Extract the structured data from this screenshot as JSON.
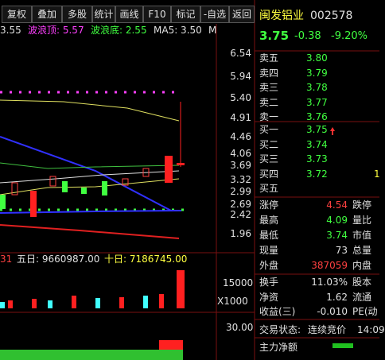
{
  "toolbar": [
    "复权",
    "叠加",
    "多股",
    "统计",
    "画线",
    "F10",
    "标记",
    "-自选",
    "返回"
  ],
  "indicator": [
    {
      "text": "3.55",
      "color": "#e0e0e0"
    },
    {
      "text": "波浪顶: 5.57",
      "color": "#ff40ff"
    },
    {
      "text": "波浪底: 2.55",
      "color": "#40ff40"
    },
    {
      "text": "MA5: 3.50",
      "color": "#e0e0e0"
    },
    {
      "text": "M",
      "color": "#e0e0e0"
    }
  ],
  "price_axis": [
    "6.54",
    "5.94",
    "5.40",
    "4.91",
    "4.46",
    "4.06",
    "3.69",
    "3.32",
    "2.99",
    "2.69",
    "2.42",
    "1.96"
  ],
  "volume_line": [
    {
      "text": "31",
      "color": "#ff4040"
    },
    {
      "text": "五日: 9660987.00",
      "color": "#e0e0e0"
    },
    {
      "text": "十日: 7186745.00",
      "color": "#ffff40"
    }
  ],
  "volume_axis": [
    "15000",
    "X1000"
  ],
  "lower_axis": [
    "30.00"
  ],
  "quote": {
    "name": "闽发铝业",
    "code": "002578",
    "price": "3.75",
    "change": "-0.38",
    "pct": "-9.20%"
  },
  "sell": [
    {
      "label": "卖五",
      "price": "3.80"
    },
    {
      "label": "卖四",
      "price": "3.79"
    },
    {
      "label": "卖三",
      "price": "3.78"
    },
    {
      "label": "卖二",
      "price": "3.77"
    },
    {
      "label": "卖一",
      "price": "3.76"
    }
  ],
  "buy": [
    {
      "label": "买一",
      "price": "3.75"
    },
    {
      "label": "买二",
      "price": "3.74"
    },
    {
      "label": "买三",
      "price": "3.73"
    },
    {
      "label": "买四",
      "price": "3.72",
      "extra": "1"
    },
    {
      "label": "买五"
    }
  ],
  "stats1": [
    {
      "label": "涨停",
      "value": "4.54",
      "color": "#ff4040",
      "label2": "跌停"
    },
    {
      "label": "最高",
      "value": "4.09",
      "color": "#40ff40",
      "label2": "量比"
    },
    {
      "label": "最低",
      "value": "3.74",
      "color": "#40ff40",
      "label2": "市值"
    },
    {
      "label": "现量",
      "value": "73",
      "color": "#e0e0e0",
      "label2": "总量"
    },
    {
      "label": "外盘",
      "value": "387059",
      "color": "#ff4040",
      "label2": "内盘"
    }
  ],
  "stats2": [
    {
      "label": "换手",
      "value": "11.03%",
      "color": "#e0e0e0",
      "label2": "股本"
    },
    {
      "label": "净资",
      "value": "1.62",
      "color": "#e0e0e0",
      "label2": "流通"
    },
    {
      "label": "收益(三)",
      "value": "-0.010",
      "color": "#e0e0e0",
      "label2": "PE(动"
    }
  ],
  "status": {
    "label": "交易状态:",
    "value": "连续竞价",
    "time": "14:09"
  },
  "flow": {
    "label": "主力净额"
  }
}
